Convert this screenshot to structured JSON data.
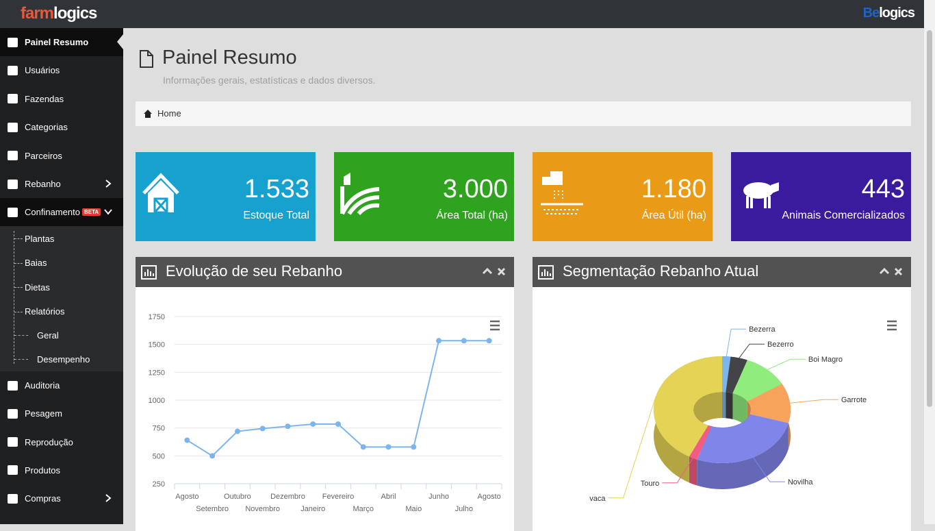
{
  "brand": {
    "left": [
      "farm",
      "logics"
    ],
    "right": [
      "Be",
      "logics"
    ]
  },
  "sidebar": {
    "top": [
      "Painel Resumo",
      "Usuários",
      "Fazendas",
      "Categorias",
      "Parceiros",
      "Rebanho"
    ],
    "confinamento": {
      "label": "Confinamento",
      "badge": "BETA",
      "items": [
        "Plantas",
        "Baias",
        "Dietas",
        "Relatórios"
      ],
      "reports": [
        "Geral",
        "Desempenho"
      ]
    },
    "bottom": [
      "Auditoria",
      "Pesagem",
      "Reprodução",
      "Produtos",
      "Compras"
    ]
  },
  "page": {
    "title": "Painel Resumo",
    "subtitle": "Informações gerais, estatísticas e dados diversos.",
    "breadcrumb": "Home"
  },
  "cards": [
    {
      "value": "1.533",
      "label": "Estoque Total",
      "color": "#17a1cf"
    },
    {
      "value": "3.000",
      "label": "Área Total (ha)",
      "color": "#2fa320"
    },
    {
      "value": "1.180",
      "label": "Área Útil (ha)",
      "color": "#e99a16"
    },
    {
      "value": "443",
      "label": "Animais Comercializados",
      "color": "#3a1a9d"
    }
  ],
  "chart_data": [
    {
      "type": "line",
      "title": "Evolução de seu Rebanho",
      "categories": [
        "Agosto",
        "Setembro",
        "Outubro",
        "Novembro",
        "Dezembro",
        "Janeiro",
        "Fevereiro",
        "Março",
        "Abril",
        "Maio",
        "Junho",
        "Julho",
        "Agosto"
      ],
      "values": [
        640,
        500,
        720,
        745,
        765,
        785,
        785,
        580,
        580,
        580,
        1533,
        1533,
        1533
      ],
      "color": "#7cb5ec",
      "ylim": [
        250,
        1750
      ],
      "yticks": [
        250,
        500,
        750,
        1000,
        1250,
        1500,
        1750
      ],
      "grid": true
    },
    {
      "type": "pie",
      "title": "Segmentação Rebanho Atual",
      "categories": [
        "Bezerra",
        "Bezerro",
        "Boi Magro",
        "Garrote",
        "Novilha",
        "Touro",
        "vaca"
      ],
      "values": [
        2,
        4,
        11,
        12,
        27,
        2,
        42
      ],
      "colors": [
        "#7cb5ec",
        "#434348",
        "#90ed7d",
        "#f7a35c",
        "#8085e9",
        "#f15c80",
        "#e4d354"
      ]
    }
  ]
}
